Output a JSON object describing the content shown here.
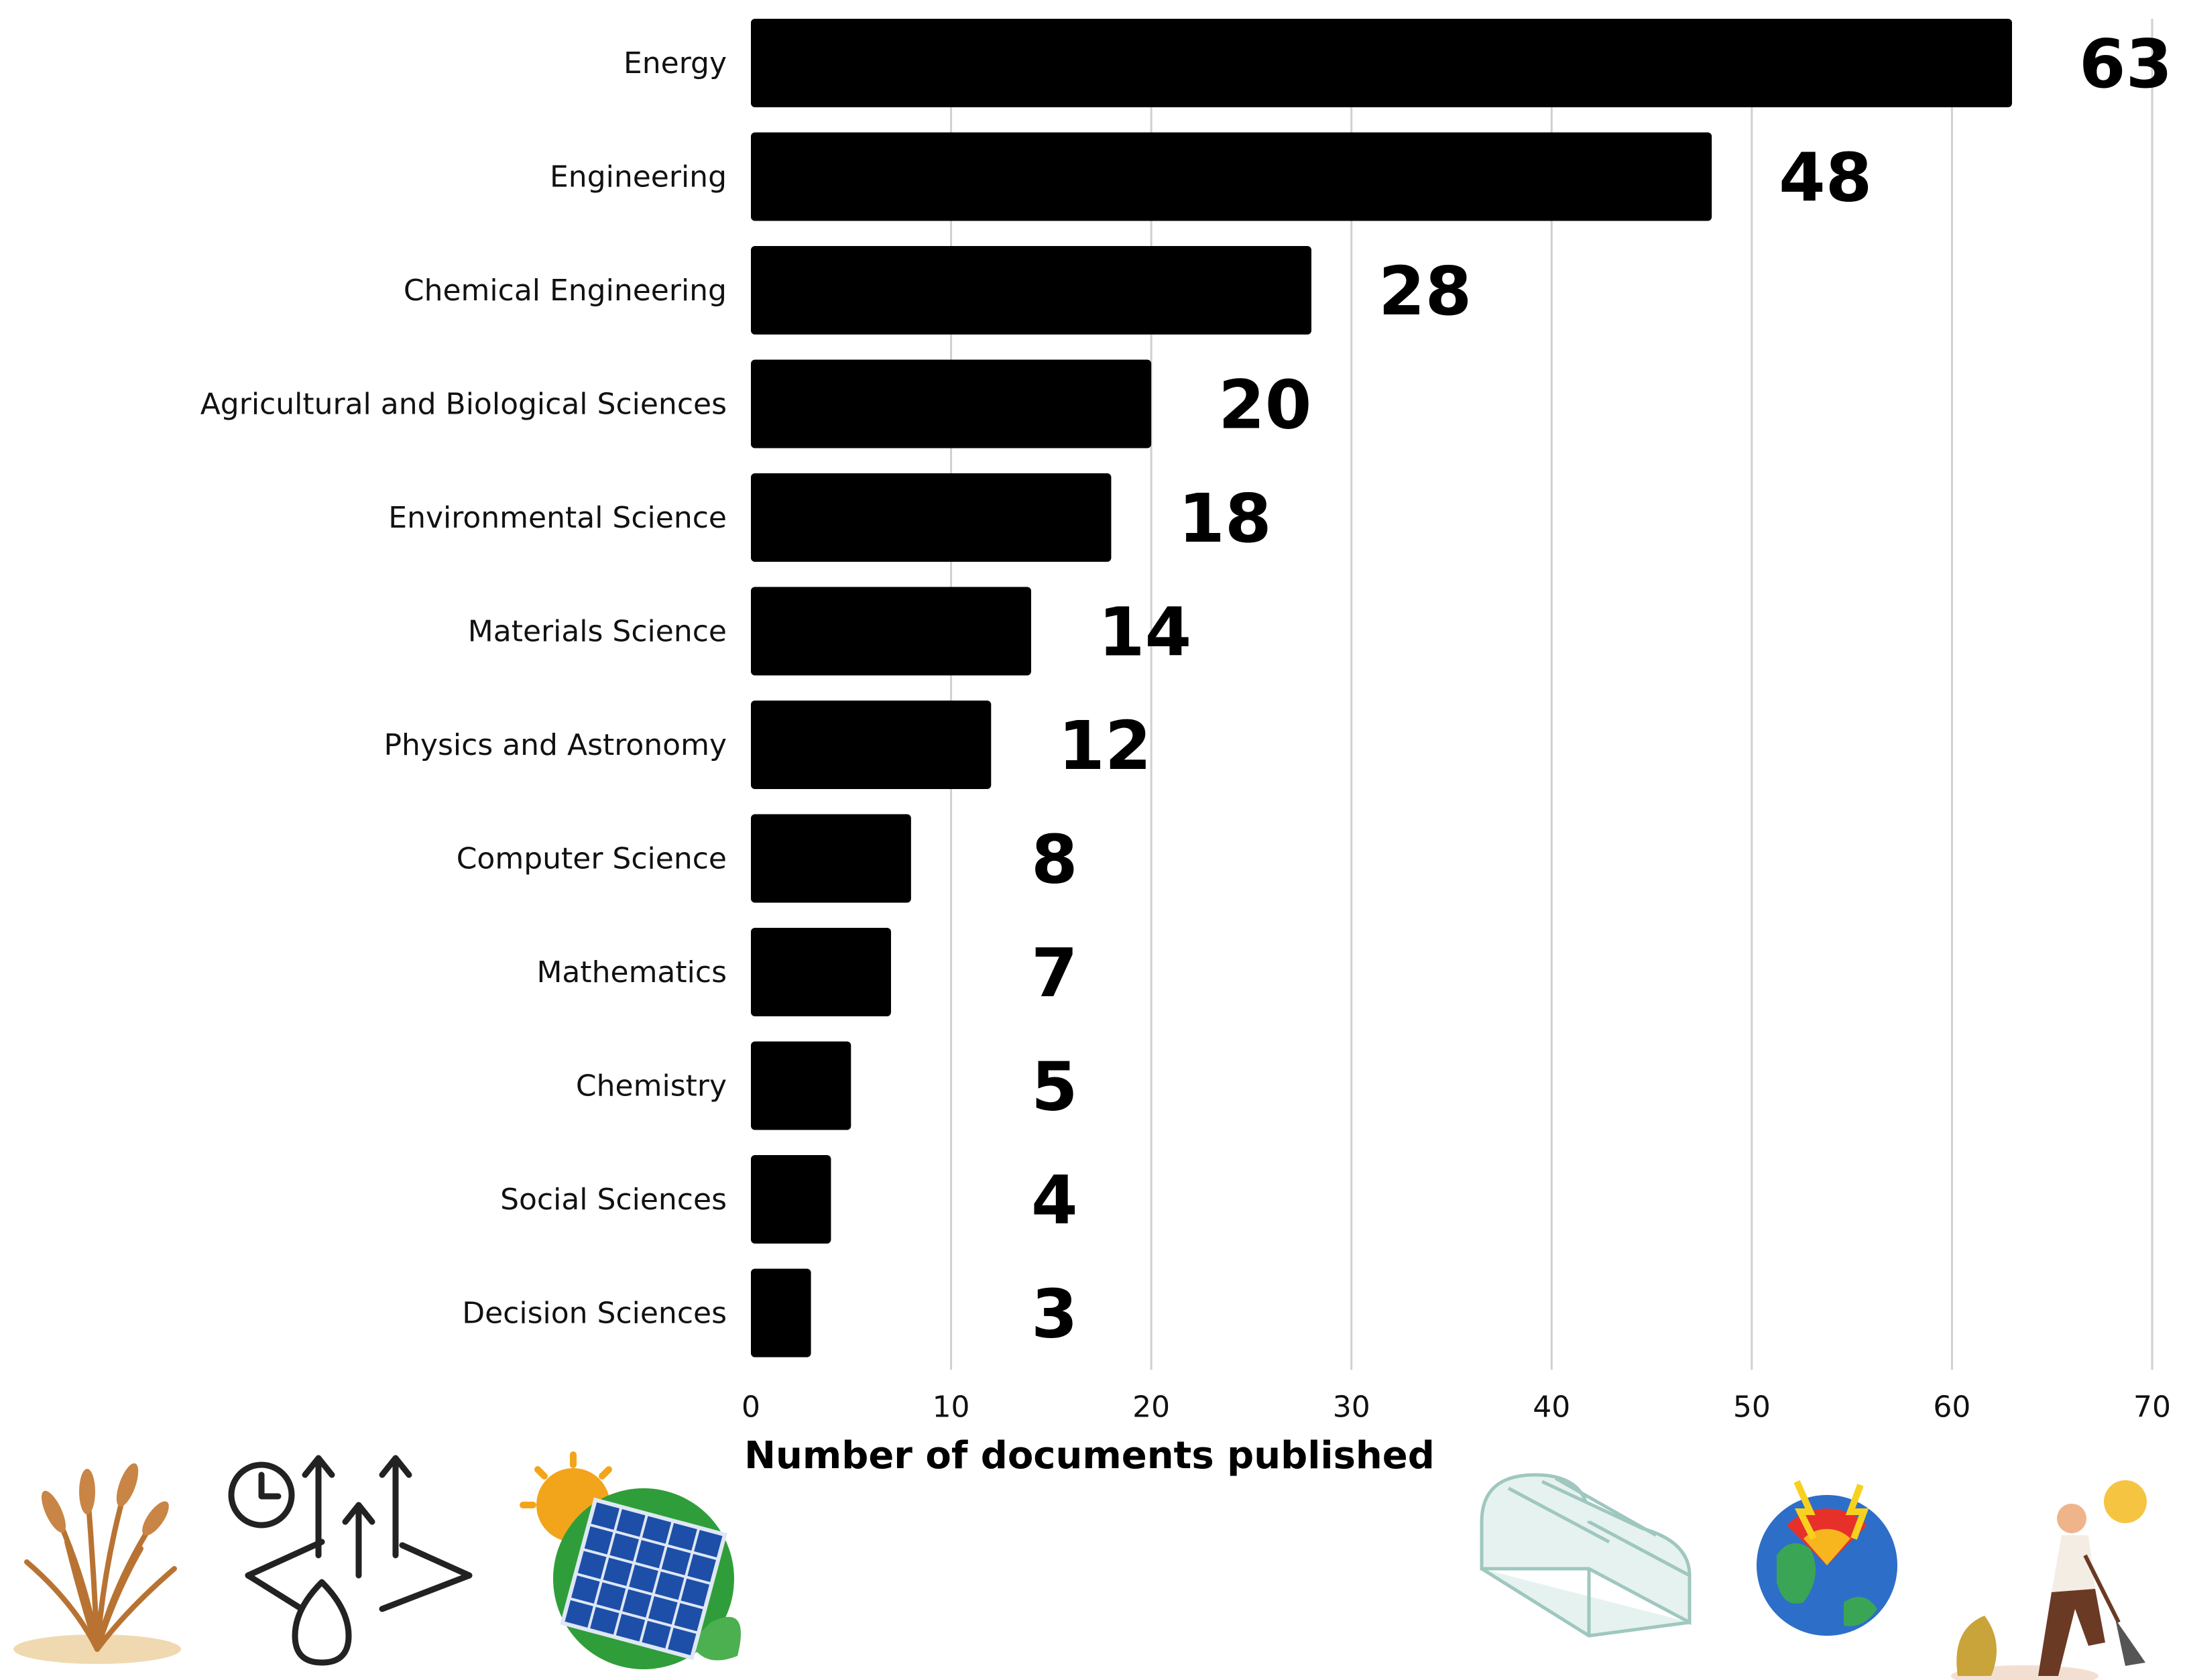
{
  "chart_data": {
    "type": "bar",
    "orientation": "horizontal",
    "categories": [
      "Energy",
      "Engineering",
      "Chemical Engineering",
      "Agricultural and Biological Sciences",
      "Environmental Science",
      "Materials Science",
      "Physics and Astronomy",
      "Computer Science",
      "Mathematics",
      "Chemistry",
      "Social Sciences",
      "Decision Sciences"
    ],
    "values": [
      63,
      48,
      28,
      20,
      18,
      14,
      12,
      8,
      7,
      5,
      4,
      3
    ],
    "xlabel": "Number of documents published",
    "ylabel": "",
    "xlim": [
      0,
      70
    ],
    "xticks": [
      0,
      10,
      20,
      30,
      40,
      50,
      60,
      70
    ],
    "grid": "vertical",
    "bar_color": "#000000",
    "grid_color": "#d0d0d0"
  },
  "decorations": {
    "icons": [
      "dry-grass-icon",
      "water-evaporation-icon",
      "solar-panel-icon",
      "greenhouse-icon",
      "geothermal-earth-icon",
      "farmer-digging-icon"
    ]
  }
}
